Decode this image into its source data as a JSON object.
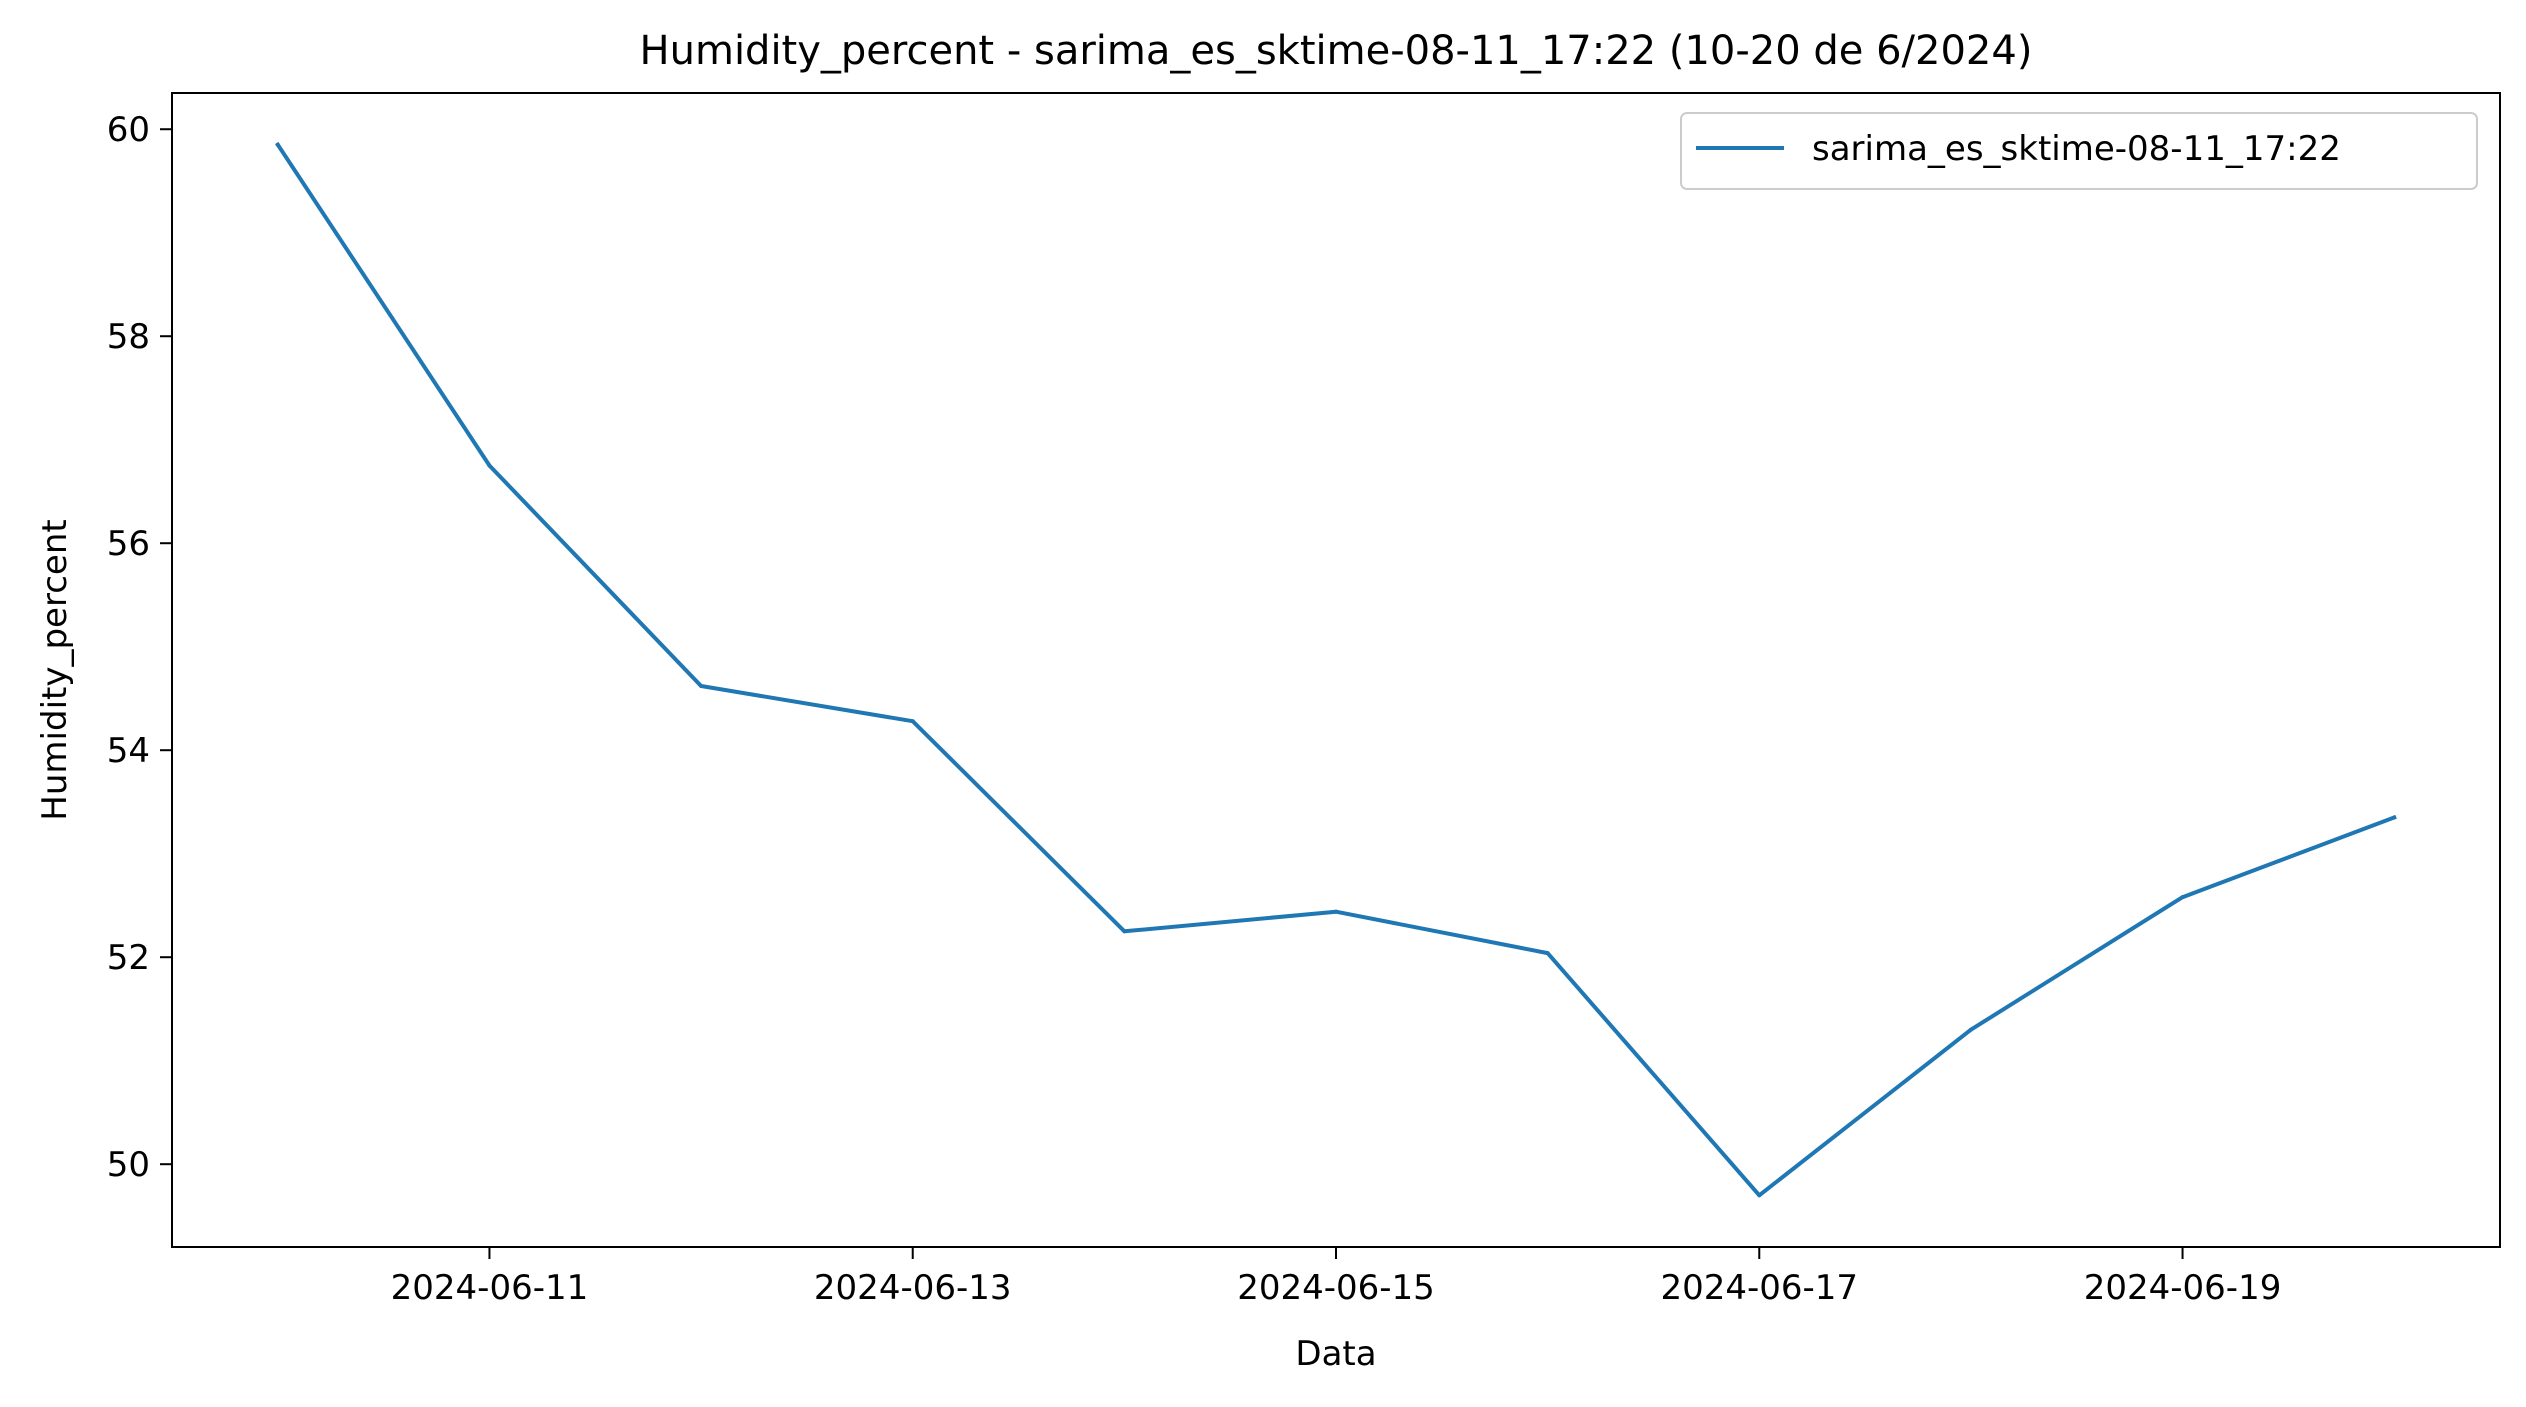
{
  "chart_data": {
    "type": "line",
    "title": "Humidity_percent - sarima_es_sktime-08-11_17:22 (10-20 de 6/2024)",
    "xlabel": "Data",
    "ylabel": "Humidity_percent",
    "x": [
      "2024-06-10",
      "2024-06-11",
      "2024-06-12",
      "2024-06-13",
      "2024-06-14",
      "2024-06-15",
      "2024-06-16",
      "2024-06-17",
      "2024-06-18",
      "2024-06-19",
      "2024-06-20"
    ],
    "series": [
      {
        "name": "sarima_es_sktime-08-11_17:22",
        "values": [
          59.85,
          56.75,
          54.62,
          54.28,
          52.25,
          52.44,
          52.04,
          49.7,
          51.3,
          52.58,
          53.35
        ],
        "color": "#1f77b4"
      }
    ],
    "x_ticks": [
      "2024-06-11",
      "2024-06-13",
      "2024-06-15",
      "2024-06-17",
      "2024-06-19"
    ],
    "y_ticks": [
      "50",
      "52",
      "54",
      "56",
      "58",
      "60"
    ],
    "xlim": [
      "2024-06-09T12:00",
      "2024-06-20T12:00"
    ],
    "ylim": [
      49.2,
      60.35
    ],
    "grid": false,
    "legend_position": "top-right"
  }
}
